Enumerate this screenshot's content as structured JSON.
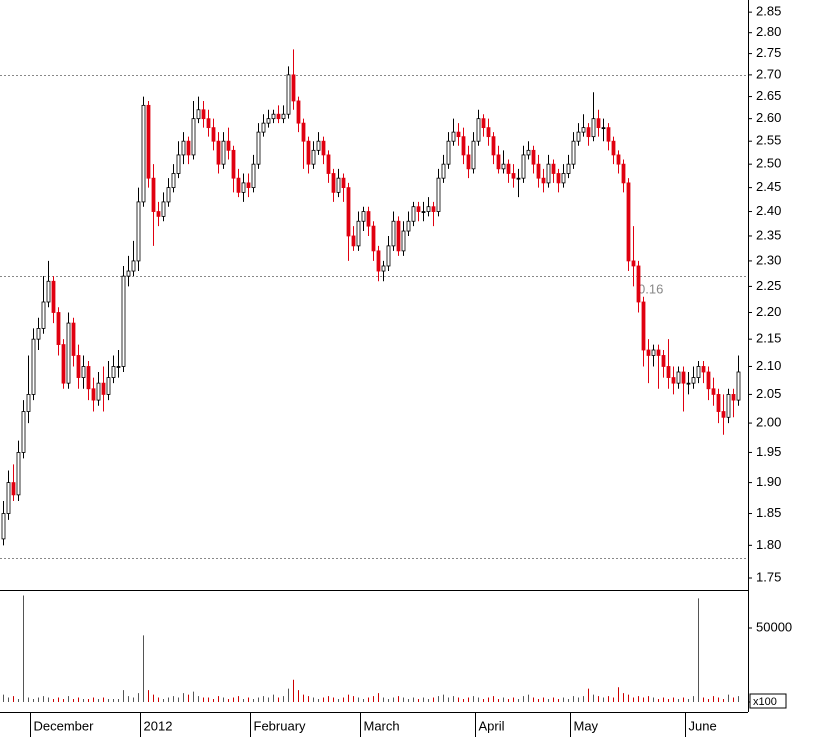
{
  "chart_data": [
    {
      "type": "candlestick",
      "log_scale": true,
      "up_color": "#ffffff",
      "up_edge": "#000000",
      "down_color": "#e00010",
      "flat_color": "#000000",
      "open": [
        1.81,
        1.85,
        1.9,
        1.88,
        1.95,
        2.02,
        2.05,
        2.15,
        2.17,
        2.22,
        2.26,
        2.2,
        2.14,
        2.07,
        2.18,
        2.12,
        2.08,
        2.1,
        2.06,
        2.04,
        2.07,
        2.05,
        2.08,
        2.1,
        2.1,
        2.27,
        2.28,
        2.3,
        2.42,
        2.63,
        2.47,
        2.4,
        2.39,
        2.42,
        2.45,
        2.48,
        2.52,
        2.55,
        2.52,
        2.6,
        2.62,
        2.6,
        2.58,
        2.55,
        2.5,
        2.55,
        2.53,
        2.47,
        2.44,
        2.46,
        2.45,
        2.5,
        2.57,
        2.59,
        2.6,
        2.61,
        2.6,
        2.61,
        2.7,
        2.64,
        2.59,
        2.55,
        2.5,
        2.53,
        2.55,
        2.52,
        2.48,
        2.44,
        2.47,
        2.45,
        2.35,
        2.33,
        2.38,
        2.4,
        2.37,
        2.32,
        2.28,
        2.29,
        2.33,
        2.38,
        2.32,
        2.36,
        2.38,
        2.41,
        2.4,
        2.4,
        2.41,
        2.4,
        2.47,
        2.5,
        2.55,
        2.57,
        2.56,
        2.52,
        2.49,
        2.55,
        2.6,
        2.58,
        2.56,
        2.52,
        2.49,
        2.5,
        2.48,
        2.47,
        2.47,
        2.52,
        2.53,
        2.5,
        2.47,
        2.46,
        2.5,
        2.48,
        2.46,
        2.48,
        2.5,
        2.55,
        2.57,
        2.58,
        2.56,
        2.6,
        2.58,
        2.58,
        2.55,
        2.52,
        2.5,
        2.46,
        2.3,
        2.29,
        2.22,
        2.13,
        2.12,
        2.13,
        2.12,
        2.1,
        2.08,
        2.07,
        2.09,
        2.07,
        2.07,
        2.08,
        2.1,
        2.09,
        2.06,
        2.05,
        2.02,
        2.01,
        2.05,
        2.04
      ],
      "high": [
        1.87,
        1.92,
        1.93,
        1.97,
        2.04,
        2.12,
        2.17,
        2.19,
        2.27,
        2.3,
        2.27,
        2.21,
        2.15,
        2.2,
        2.19,
        2.14,
        2.12,
        2.11,
        2.08,
        2.09,
        2.1,
        2.11,
        2.12,
        2.13,
        2.29,
        2.31,
        2.34,
        2.45,
        2.65,
        2.64,
        2.5,
        2.42,
        2.44,
        2.47,
        2.5,
        2.55,
        2.57,
        2.56,
        2.64,
        2.65,
        2.64,
        2.62,
        2.6,
        2.57,
        2.57,
        2.58,
        2.54,
        2.49,
        2.48,
        2.48,
        2.52,
        2.59,
        2.61,
        2.62,
        2.62,
        2.63,
        2.63,
        2.72,
        2.76,
        2.65,
        2.6,
        2.56,
        2.55,
        2.57,
        2.56,
        2.53,
        2.49,
        2.49,
        2.48,
        2.46,
        2.37,
        2.4,
        2.41,
        2.41,
        2.38,
        2.33,
        2.3,
        2.35,
        2.4,
        2.39,
        2.38,
        2.4,
        2.42,
        2.42,
        2.42,
        2.43,
        2.42,
        2.49,
        2.52,
        2.57,
        2.6,
        2.59,
        2.58,
        2.54,
        2.57,
        2.62,
        2.61,
        2.6,
        2.57,
        2.54,
        2.53,
        2.51,
        2.5,
        2.49,
        2.54,
        2.55,
        2.54,
        2.52,
        2.49,
        2.52,
        2.51,
        2.49,
        2.5,
        2.52,
        2.57,
        2.59,
        2.61,
        2.59,
        2.66,
        2.62,
        2.6,
        2.59,
        2.56,
        2.53,
        2.51,
        2.47,
        2.37,
        2.3,
        2.23,
        2.15,
        2.14,
        2.14,
        2.13,
        2.15,
        2.1,
        2.1,
        2.1,
        2.09,
        2.1,
        2.11,
        2.11,
        2.1,
        2.08,
        2.06,
        2.05,
        2.06,
        2.06,
        2.12
      ],
      "low": [
        1.8,
        1.84,
        1.87,
        1.87,
        1.94,
        2.0,
        2.04,
        2.13,
        2.16,
        2.21,
        2.18,
        2.12,
        2.06,
        2.06,
        2.1,
        2.06,
        2.06,
        2.04,
        2.02,
        2.03,
        2.02,
        2.04,
        2.07,
        2.08,
        2.09,
        2.25,
        2.27,
        2.28,
        2.41,
        2.45,
        2.33,
        2.37,
        2.38,
        2.41,
        2.44,
        2.47,
        2.5,
        2.5,
        2.51,
        2.59,
        2.58,
        2.56,
        2.53,
        2.48,
        2.49,
        2.51,
        2.44,
        2.43,
        2.42,
        2.43,
        2.44,
        2.49,
        2.56,
        2.58,
        2.59,
        2.59,
        2.59,
        2.6,
        2.62,
        2.57,
        2.49,
        2.48,
        2.49,
        2.52,
        2.5,
        2.46,
        2.42,
        2.43,
        2.42,
        2.3,
        2.32,
        2.32,
        2.36,
        2.35,
        2.3,
        2.26,
        2.26,
        2.28,
        2.32,
        2.31,
        2.31,
        2.35,
        2.37,
        2.38,
        2.38,
        2.39,
        2.37,
        2.39,
        2.46,
        2.49,
        2.54,
        2.54,
        2.5,
        2.47,
        2.48,
        2.54,
        2.56,
        2.54,
        2.5,
        2.48,
        2.48,
        2.46,
        2.45,
        2.43,
        2.46,
        2.51,
        2.48,
        2.45,
        2.44,
        2.45,
        2.46,
        2.44,
        2.45,
        2.47,
        2.49,
        2.54,
        2.56,
        2.54,
        2.55,
        2.56,
        2.55,
        2.53,
        2.5,
        2.48,
        2.44,
        2.28,
        2.25,
        2.2,
        2.1,
        2.07,
        2.1,
        2.06,
        2.08,
        2.06,
        2.05,
        2.06,
        2.02,
        2.05,
        2.06,
        2.07,
        2.07,
        2.04,
        2.03,
        2.0,
        1.98,
        2.0,
        2.01,
        2.03
      ],
      "close": [
        1.85,
        1.9,
        1.88,
        1.95,
        2.02,
        2.05,
        2.15,
        2.17,
        2.22,
        2.26,
        2.2,
        2.14,
        2.07,
        2.18,
        2.12,
        2.08,
        2.1,
        2.06,
        2.04,
        2.07,
        2.05,
        2.08,
        2.1,
        2.1,
        2.27,
        2.28,
        2.3,
        2.42,
        2.63,
        2.47,
        2.4,
        2.39,
        2.42,
        2.45,
        2.48,
        2.52,
        2.55,
        2.52,
        2.6,
        2.62,
        2.6,
        2.58,
        2.55,
        2.5,
        2.55,
        2.53,
        2.47,
        2.44,
        2.46,
        2.45,
        2.5,
        2.57,
        2.59,
        2.6,
        2.61,
        2.6,
        2.61,
        2.7,
        2.64,
        2.59,
        2.55,
        2.5,
        2.53,
        2.55,
        2.52,
        2.48,
        2.44,
        2.47,
        2.45,
        2.35,
        2.33,
        2.38,
        2.4,
        2.37,
        2.32,
        2.28,
        2.29,
        2.33,
        2.38,
        2.32,
        2.36,
        2.38,
        2.41,
        2.4,
        2.4,
        2.41,
        2.4,
        2.47,
        2.5,
        2.55,
        2.57,
        2.56,
        2.52,
        2.49,
        2.55,
        2.6,
        2.58,
        2.56,
        2.52,
        2.49,
        2.5,
        2.48,
        2.47,
        2.47,
        2.52,
        2.53,
        2.5,
        2.47,
        2.46,
        2.5,
        2.48,
        2.46,
        2.48,
        2.5,
        2.55,
        2.57,
        2.58,
        2.56,
        2.6,
        2.58,
        2.58,
        2.55,
        2.52,
        2.5,
        2.46,
        2.3,
        2.29,
        2.22,
        2.13,
        2.12,
        2.13,
        2.12,
        2.1,
        2.08,
        2.07,
        2.09,
        2.07,
        2.07,
        2.08,
        2.1,
        2.09,
        2.06,
        2.05,
        2.02,
        2.01,
        2.05,
        2.04,
        2.09
      ],
      "ylim": [
        1.732,
        2.88
      ],
      "yticks": [
        1.75,
        {
          "value": 1.8,
          "label": "1.80"
        },
        1.85,
        {
          "value": 1.9,
          "label": "1.90"
        },
        1.95,
        {
          "value": 2,
          "label": "2.00"
        },
        2.05,
        {
          "value": 2.1,
          "label": "2.10"
        },
        2.15,
        {
          "value": 2.2,
          "label": "2.20"
        },
        2.25,
        {
          "value": 2.3,
          "label": "2.30"
        },
        2.35,
        {
          "value": 2.4,
          "label": "2.40"
        },
        2.45,
        {
          "value": 2.5,
          "label": "2.50"
        },
        2.55,
        {
          "value": 2.6,
          "label": "2.60"
        },
        2.65,
        {
          "value": 2.7,
          "label": "2.70"
        },
        2.75,
        {
          "value": 2.8,
          "label": "2.80"
        },
        2.85
      ],
      "hlines": [
        2.7,
        2.27,
        1.78
      ],
      "annotation": "0.16"
    },
    {
      "type": "bar",
      "unit_label": "x100",
      "up_color": "#555555",
      "down_color": "#cc0000",
      "values": [
        5000,
        3000,
        4000,
        2000,
        72000,
        3000,
        2000,
        3000,
        4000,
        3000,
        2000,
        3000,
        2000,
        4000,
        2000,
        3000,
        2000,
        2000,
        3000,
        2000,
        3000,
        2000,
        2000,
        2000,
        8000,
        4000,
        3000,
        6000,
        45000,
        8000,
        5000,
        3000,
        2000,
        3000,
        4000,
        3000,
        6000,
        5000,
        7000,
        4000,
        3000,
        3000,
        2000,
        4000,
        3000,
        2000,
        3000,
        4000,
        2000,
        3000,
        2000,
        3000,
        4000,
        3000,
        5000,
        3000,
        4000,
        9000,
        15000,
        8000,
        5000,
        4000,
        3000,
        2000,
        3000,
        4000,
        3000,
        2000,
        3000,
        5000,
        4000,
        3000,
        2000,
        3000,
        4000,
        6000,
        3000,
        2000,
        3000,
        4000,
        3000,
        2000,
        3000,
        2000,
        3000,
        2000,
        3000,
        4000,
        5000,
        3000,
        4000,
        3000,
        2000,
        3000,
        4000,
        3000,
        2000,
        3000,
        4000,
        2000,
        3000,
        2000,
        3000,
        2000,
        4000,
        5000,
        3000,
        2000,
        3000,
        2000,
        3000,
        2000,
        3000,
        2000,
        4000,
        3000,
        4000,
        9000,
        5000,
        4000,
        3000,
        4000,
        3000,
        10000,
        6000,
        5000,
        3000,
        4000,
        3000,
        4000,
        3000,
        2000,
        3000,
        2000,
        3000,
        2000,
        3000,
        2000,
        4000,
        70000,
        3000,
        2000,
        4000,
        3000,
        2000,
        5000,
        3000,
        4000
      ],
      "categories": [
        null,
        null,
        null,
        null,
        null,
        null,
        "December",
        null,
        null,
        null,
        null,
        null,
        null,
        null,
        null,
        null,
        null,
        null,
        null,
        null,
        null,
        null,
        null,
        null,
        null,
        null,
        null,
        null,
        "2012",
        null,
        null,
        null,
        null,
        null,
        null,
        null,
        null,
        null,
        null,
        null,
        null,
        null,
        null,
        null,
        null,
        null,
        null,
        null,
        null,
        null,
        "February",
        null,
        null,
        null,
        null,
        null,
        null,
        null,
        null,
        null,
        null,
        null,
        null,
        null,
        null,
        null,
        null,
        null,
        null,
        null,
        null,
        null,
        "March",
        null,
        null,
        null,
        null,
        null,
        null,
        null,
        null,
        null,
        null,
        null,
        null,
        null,
        null,
        null,
        null,
        null,
        null,
        null,
        null,
        null,
        null,
        "April",
        null,
        null,
        null,
        null,
        null,
        null,
        null,
        null,
        null,
        null,
        null,
        null,
        null,
        null,
        null,
        null,
        null,
        null,
        "May",
        null,
        null,
        null,
        null,
        null,
        null,
        null,
        null,
        null,
        null,
        null,
        null,
        null,
        null,
        null,
        null,
        null,
        null,
        null,
        null,
        null,
        null,
        "June",
        null,
        null,
        null,
        null,
        null,
        null,
        null,
        null,
        null,
        null
      ],
      "ylim": [
        -6757,
        74324
      ],
      "yticks": [
        0,
        50000
      ]
    }
  ]
}
